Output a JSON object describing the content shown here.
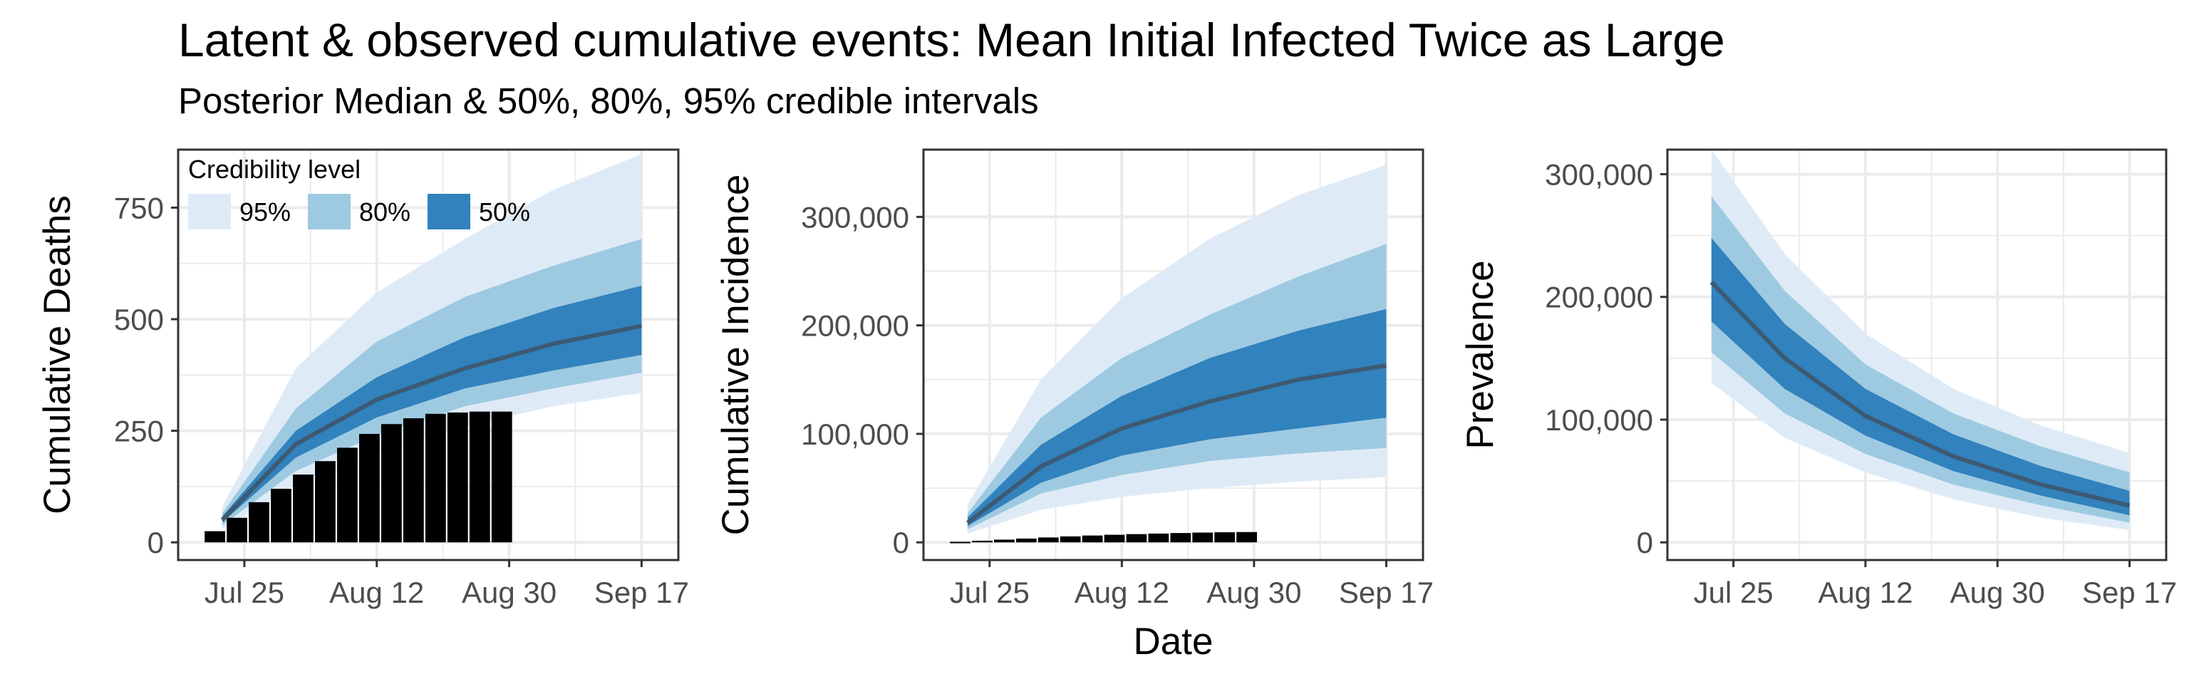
{
  "title": "Latent & observed cumulative events: Mean Initial Infected Twice as Large",
  "subtitle": "Posterior Median & 50%, 80%, 95% credible intervals",
  "xlabel_shared": "Date",
  "colors": {
    "band95": "#deebf7",
    "band80": "#9ecae1",
    "band50": "#3182bd",
    "median": "#3d5a73",
    "bars": "#000000",
    "grid": "#ebebeb"
  },
  "legend": {
    "title": "Credibility level",
    "items": [
      "95%",
      "80%",
      "50%"
    ]
  },
  "chart_data": [
    {
      "type": "area",
      "ylabel": "Cumulative Deaths",
      "x_ticks": [
        "Jul 25",
        "Aug 12",
        "Aug 30",
        "Sep 17"
      ],
      "y_ticks": [
        "0",
        "250",
        "500",
        "750"
      ],
      "ylim": [
        0,
        880
      ],
      "bars": {
        "dates": [
          "Jul 21",
          "Jul 24",
          "Jul 27",
          "Jul 30",
          "Aug 2",
          "Aug 5",
          "Aug 8",
          "Aug 11",
          "Aug 14",
          "Aug 17",
          "Aug 20",
          "Aug 23",
          "Aug 26",
          "Aug 29"
        ],
        "values": [
          25,
          55,
          90,
          120,
          152,
          182,
          212,
          243,
          265,
          278,
          288,
          291,
          293,
          293
        ]
      },
      "series": [
        {
          "name": "Median",
          "dates": [
            "Jul 22",
            "Aug 1",
            "Aug 12",
            "Aug 24",
            "Sep 5",
            "Sep 17"
          ],
          "values": [
            50,
            220,
            320,
            390,
            445,
            485
          ]
        }
      ],
      "bands": [
        {
          "level": "95%",
          "lower": [
            30,
            130,
            200,
            260,
            305,
            335
          ],
          "upper": [
            80,
            390,
            560,
            680,
            790,
            870
          ]
        },
        {
          "level": "80%",
          "lower": [
            38,
            160,
            240,
            305,
            345,
            380
          ],
          "upper": [
            65,
            300,
            450,
            550,
            620,
            680
          ]
        },
        {
          "level": "50%",
          "lower": [
            45,
            190,
            280,
            345,
            385,
            420
          ],
          "upper": [
            58,
            250,
            370,
            460,
            525,
            575
          ]
        }
      ]
    },
    {
      "type": "area",
      "ylabel": "Cumulative Incidence",
      "xlabel": "Date",
      "x_ticks": [
        "Jul 25",
        "Aug 12",
        "Aug 30",
        "Sep 17"
      ],
      "y_ticks": [
        "0",
        "100,000",
        "200,000",
        "300,000"
      ],
      "ylim": [
        0,
        362000
      ],
      "bars": {
        "dates": [
          "Jul 21",
          "Jul 24",
          "Jul 27",
          "Jul 30",
          "Aug 2",
          "Aug 5",
          "Aug 8",
          "Aug 11",
          "Aug 14",
          "Aug 17",
          "Aug 20",
          "Aug 23",
          "Aug 26",
          "Aug 29"
        ],
        "values": [
          500,
          1500,
          2500,
          3500,
          4500,
          5500,
          6300,
          7000,
          7600,
          8100,
          8600,
          9000,
          9300,
          9500
        ]
      },
      "series": [
        {
          "name": "Median",
          "dates": [
            "Jul 22",
            "Aug 1",
            "Aug 12",
            "Aug 24",
            "Sep 5",
            "Sep 17"
          ],
          "values": [
            18000,
            70000,
            105000,
            130000,
            150000,
            163000
          ]
        }
      ],
      "bands": [
        {
          "level": "95%",
          "lower": [
            8000,
            30000,
            42000,
            50000,
            56000,
            60000
          ],
          "upper": [
            35000,
            150000,
            225000,
            280000,
            320000,
            348000
          ]
        },
        {
          "level": "80%",
          "lower": [
            12000,
            45000,
            62000,
            75000,
            82000,
            87000
          ],
          "upper": [
            27000,
            115000,
            170000,
            210000,
            245000,
            275000
          ]
        },
        {
          "level": "50%",
          "lower": [
            15000,
            55000,
            80000,
            95000,
            105000,
            115000
          ],
          "upper": [
            23000,
            90000,
            135000,
            170000,
            195000,
            215000
          ]
        }
      ]
    },
    {
      "type": "area",
      "ylabel": "Prevalence",
      "x_ticks": [
        "Jul 25",
        "Aug 12",
        "Aug 30",
        "Sep 17"
      ],
      "y_ticks": [
        "0",
        "100,000",
        "200,000",
        "300,000"
      ],
      "ylim": [
        0,
        320000
      ],
      "series": [
        {
          "name": "Median",
          "dates": [
            "Jul 22",
            "Aug 1",
            "Aug 12",
            "Aug 24",
            "Sep 5",
            "Sep 17"
          ],
          "values": [
            212000,
            150000,
            103000,
            70000,
            47000,
            30000
          ]
        }
      ],
      "bands": [
        {
          "level": "95%",
          "lower": [
            130000,
            85000,
            57000,
            35000,
            20000,
            10000
          ],
          "upper": [
            320000,
            235000,
            170000,
            125000,
            95000,
            73000
          ]
        },
        {
          "level": "80%",
          "lower": [
            155000,
            105000,
            72000,
            47000,
            30000,
            16000
          ],
          "upper": [
            282000,
            205000,
            145000,
            105000,
            78000,
            57000
          ]
        },
        {
          "level": "50%",
          "lower": [
            180000,
            125000,
            87000,
            58000,
            38000,
            22000
          ],
          "upper": [
            248000,
            178000,
            125000,
            88000,
            62000,
            42000
          ]
        }
      ]
    }
  ]
}
